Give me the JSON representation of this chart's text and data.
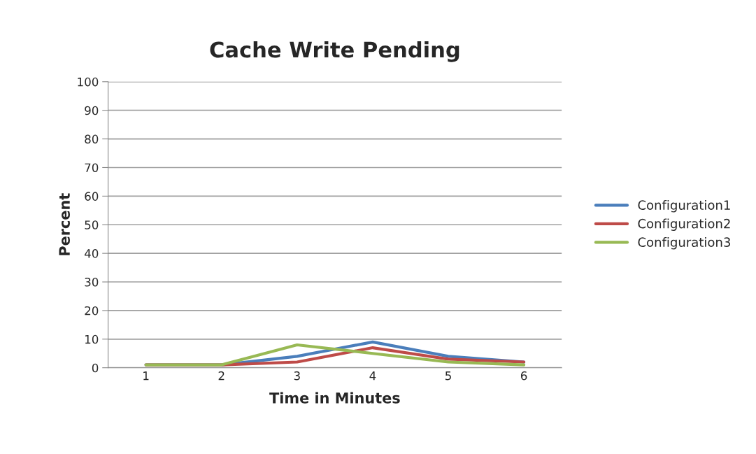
{
  "chart_data": {
    "type": "line",
    "title": "Cache Write Pending",
    "xlabel": "Time in Minutes",
    "ylabel": "Percent",
    "categories": [
      "1",
      "2",
      "3",
      "4",
      "5",
      "6"
    ],
    "series": [
      {
        "name": "Configuration1",
        "color": "#4a7ebb",
        "values": [
          1,
          1,
          4,
          9,
          4,
          2
        ]
      },
      {
        "name": "Configuration2",
        "color": "#be4b48",
        "values": [
          1,
          1,
          2,
          7,
          3,
          2
        ]
      },
      {
        "name": "Configuration3",
        "color": "#98b954",
        "values": [
          1,
          1,
          8,
          5,
          2,
          1
        ]
      }
    ],
    "ylim": [
      0,
      100
    ],
    "yticks": [
      0,
      10,
      20,
      30,
      40,
      50,
      60,
      70,
      80,
      90,
      100
    ],
    "grid": "y",
    "legend": "right",
    "marker": "none",
    "line_style": "solid"
  }
}
